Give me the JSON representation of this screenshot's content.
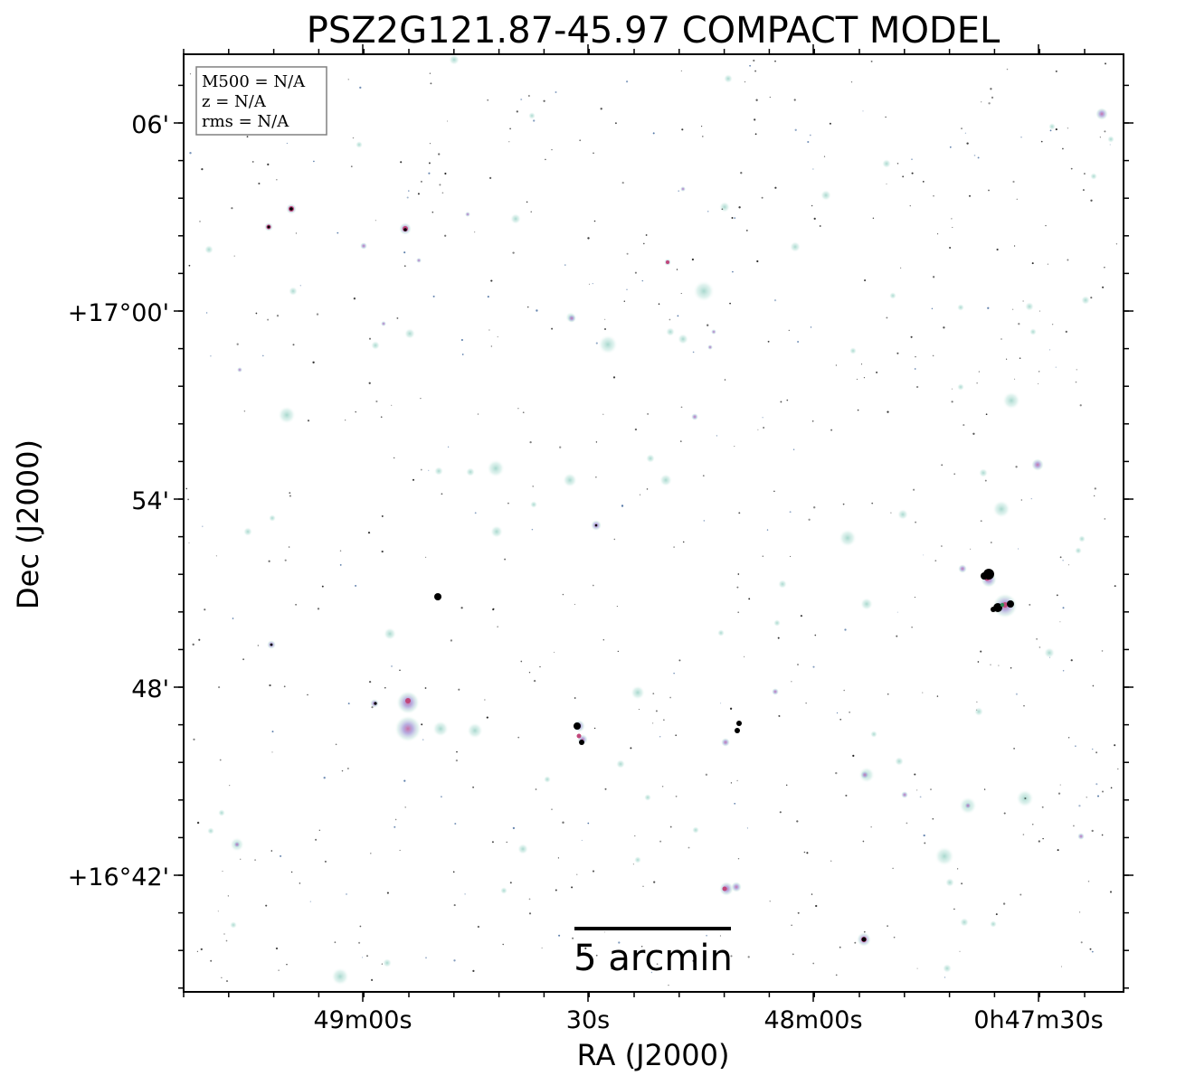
{
  "figure": {
    "title": "PSZ2G121.87-45.97 COMPACT MODEL",
    "x_label": "RA (J2000)",
    "y_label": "Dec (J2000)",
    "ra_ticks": [
      "49m00s",
      "30s",
      "48m00s",
      "0h47m30s"
    ],
    "dec_ticks": [
      "06'",
      "+17°00'",
      "54'",
      "48'",
      "+16°42'"
    ],
    "scale_bar": {
      "label": "5 arcmin"
    },
    "info_box": [
      "M500 = N/A",
      "z = N/A",
      "rms = N/A"
    ]
  },
  "colors": {
    "source_halo": "#bfe3dc",
    "source_core": "#a79ad9",
    "bright_core": "#c1477a",
    "saturated": "#000000",
    "frame": "#000000",
    "info_border": "#808080"
  }
}
